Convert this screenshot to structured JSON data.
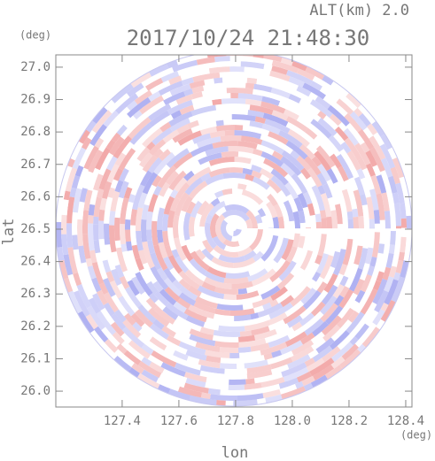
{
  "chart_data": {
    "type": "radar-map",
    "title": "2017/10/24 21:48:30",
    "subtitle": "ALT(km) 2.0",
    "xlabel": "lon",
    "ylabel": "lat",
    "xunit": "(deg)",
    "yunit": "(deg)",
    "xlim": [
      127.166,
      128.422
    ],
    "ylim": [
      25.951,
      27.038
    ],
    "xticks": [
      127.4,
      127.6,
      127.8,
      {
        "value": 128,
        "label": "128.0"
      },
      128.2,
      128.4
    ],
    "yticks": [
      {
        "value": 26,
        "label": "26.0"
      },
      26.1,
      26.2,
      26.3,
      26.4,
      26.5,
      26.6,
      26.7,
      26.8,
      26.9,
      {
        "value": 27,
        "label": "27.0"
      }
    ]
  }
}
